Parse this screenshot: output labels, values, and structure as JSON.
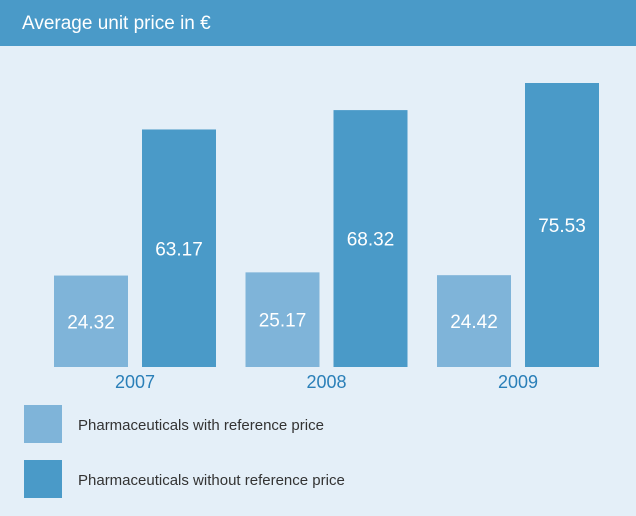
{
  "chart_data": {
    "type": "bar",
    "title": "Average unit price in €",
    "categories": [
      "2007",
      "2008",
      "2009"
    ],
    "series": [
      {
        "name": "Pharmaceuticals with reference price",
        "color": "#7fb4d9",
        "values": [
          24.32,
          25.17,
          24.42
        ]
      },
      {
        "name": "Pharmaceuticals without reference price",
        "color": "#4a9ac8",
        "values": [
          63.17,
          68.32,
          75.53
        ]
      }
    ]
  }
}
